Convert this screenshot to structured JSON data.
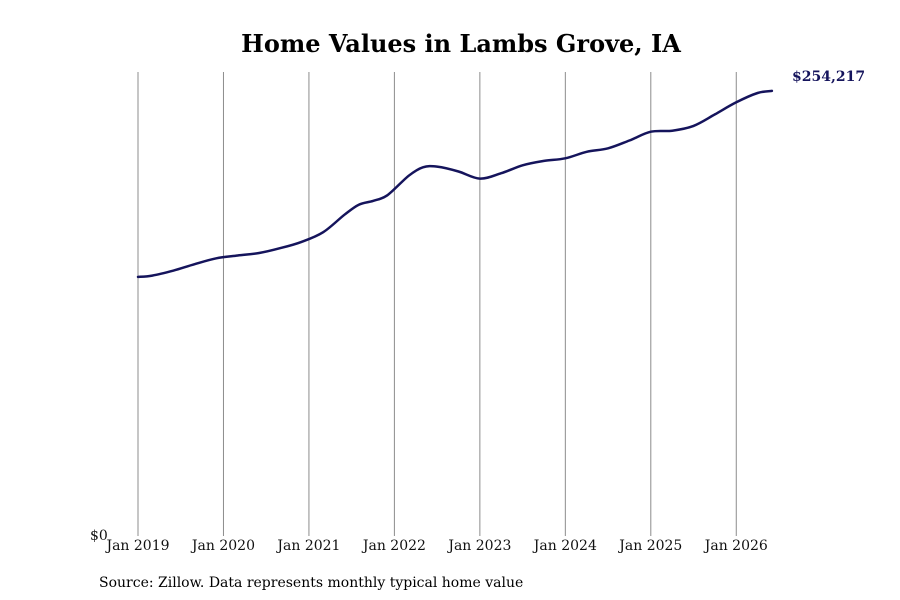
{
  "chart_data": {
    "type": "line",
    "title": "Home Values in Lambs Grove, IA",
    "xlabel": "",
    "ylabel": "",
    "x_ticks": [
      "Jan 2019",
      "Jan 2020",
      "Jan 2021",
      "Jan 2022",
      "Jan 2023",
      "Jan 2024",
      "Jan 2025",
      "Jan 2026"
    ],
    "y_ticks": [
      "$0"
    ],
    "ylim": [
      0,
      265000
    ],
    "xlim": [
      "2019-01",
      "2026-07"
    ],
    "grid": "vertical",
    "line_color": "#15145c",
    "end_label": "$254,217",
    "series": [
      {
        "x": [
          "2019-01",
          "2019-03",
          "2019-06",
          "2019-09",
          "2019-12",
          "2020-03",
          "2020-06",
          "2020-09",
          "2020-12",
          "2021-03",
          "2021-06",
          "2021-08",
          "2021-10",
          "2021-12",
          "2022-03",
          "2022-05",
          "2022-07",
          "2022-10",
          "2023-01",
          "2023-04",
          "2023-07",
          "2023-10",
          "2024-01",
          "2024-04",
          "2024-07",
          "2024-10",
          "2025-01",
          "2025-04",
          "2025-07",
          "2025-10",
          "2026-01",
          "2026-04",
          "2026-06"
        ],
        "values": [
          148000,
          148700,
          151600,
          155300,
          158600,
          160200,
          161600,
          164400,
          168000,
          173500,
          183500,
          189200,
          191400,
          194600,
          205700,
          210600,
          211000,
          208200,
          204100,
          207200,
          211700,
          214200,
          215700,
          219400,
          221400,
          225900,
          230900,
          231500,
          234200,
          240800,
          247700,
          253000,
          254217
        ]
      }
    ],
    "source": "Source: Zillow. Data represents monthly typical home value"
  }
}
